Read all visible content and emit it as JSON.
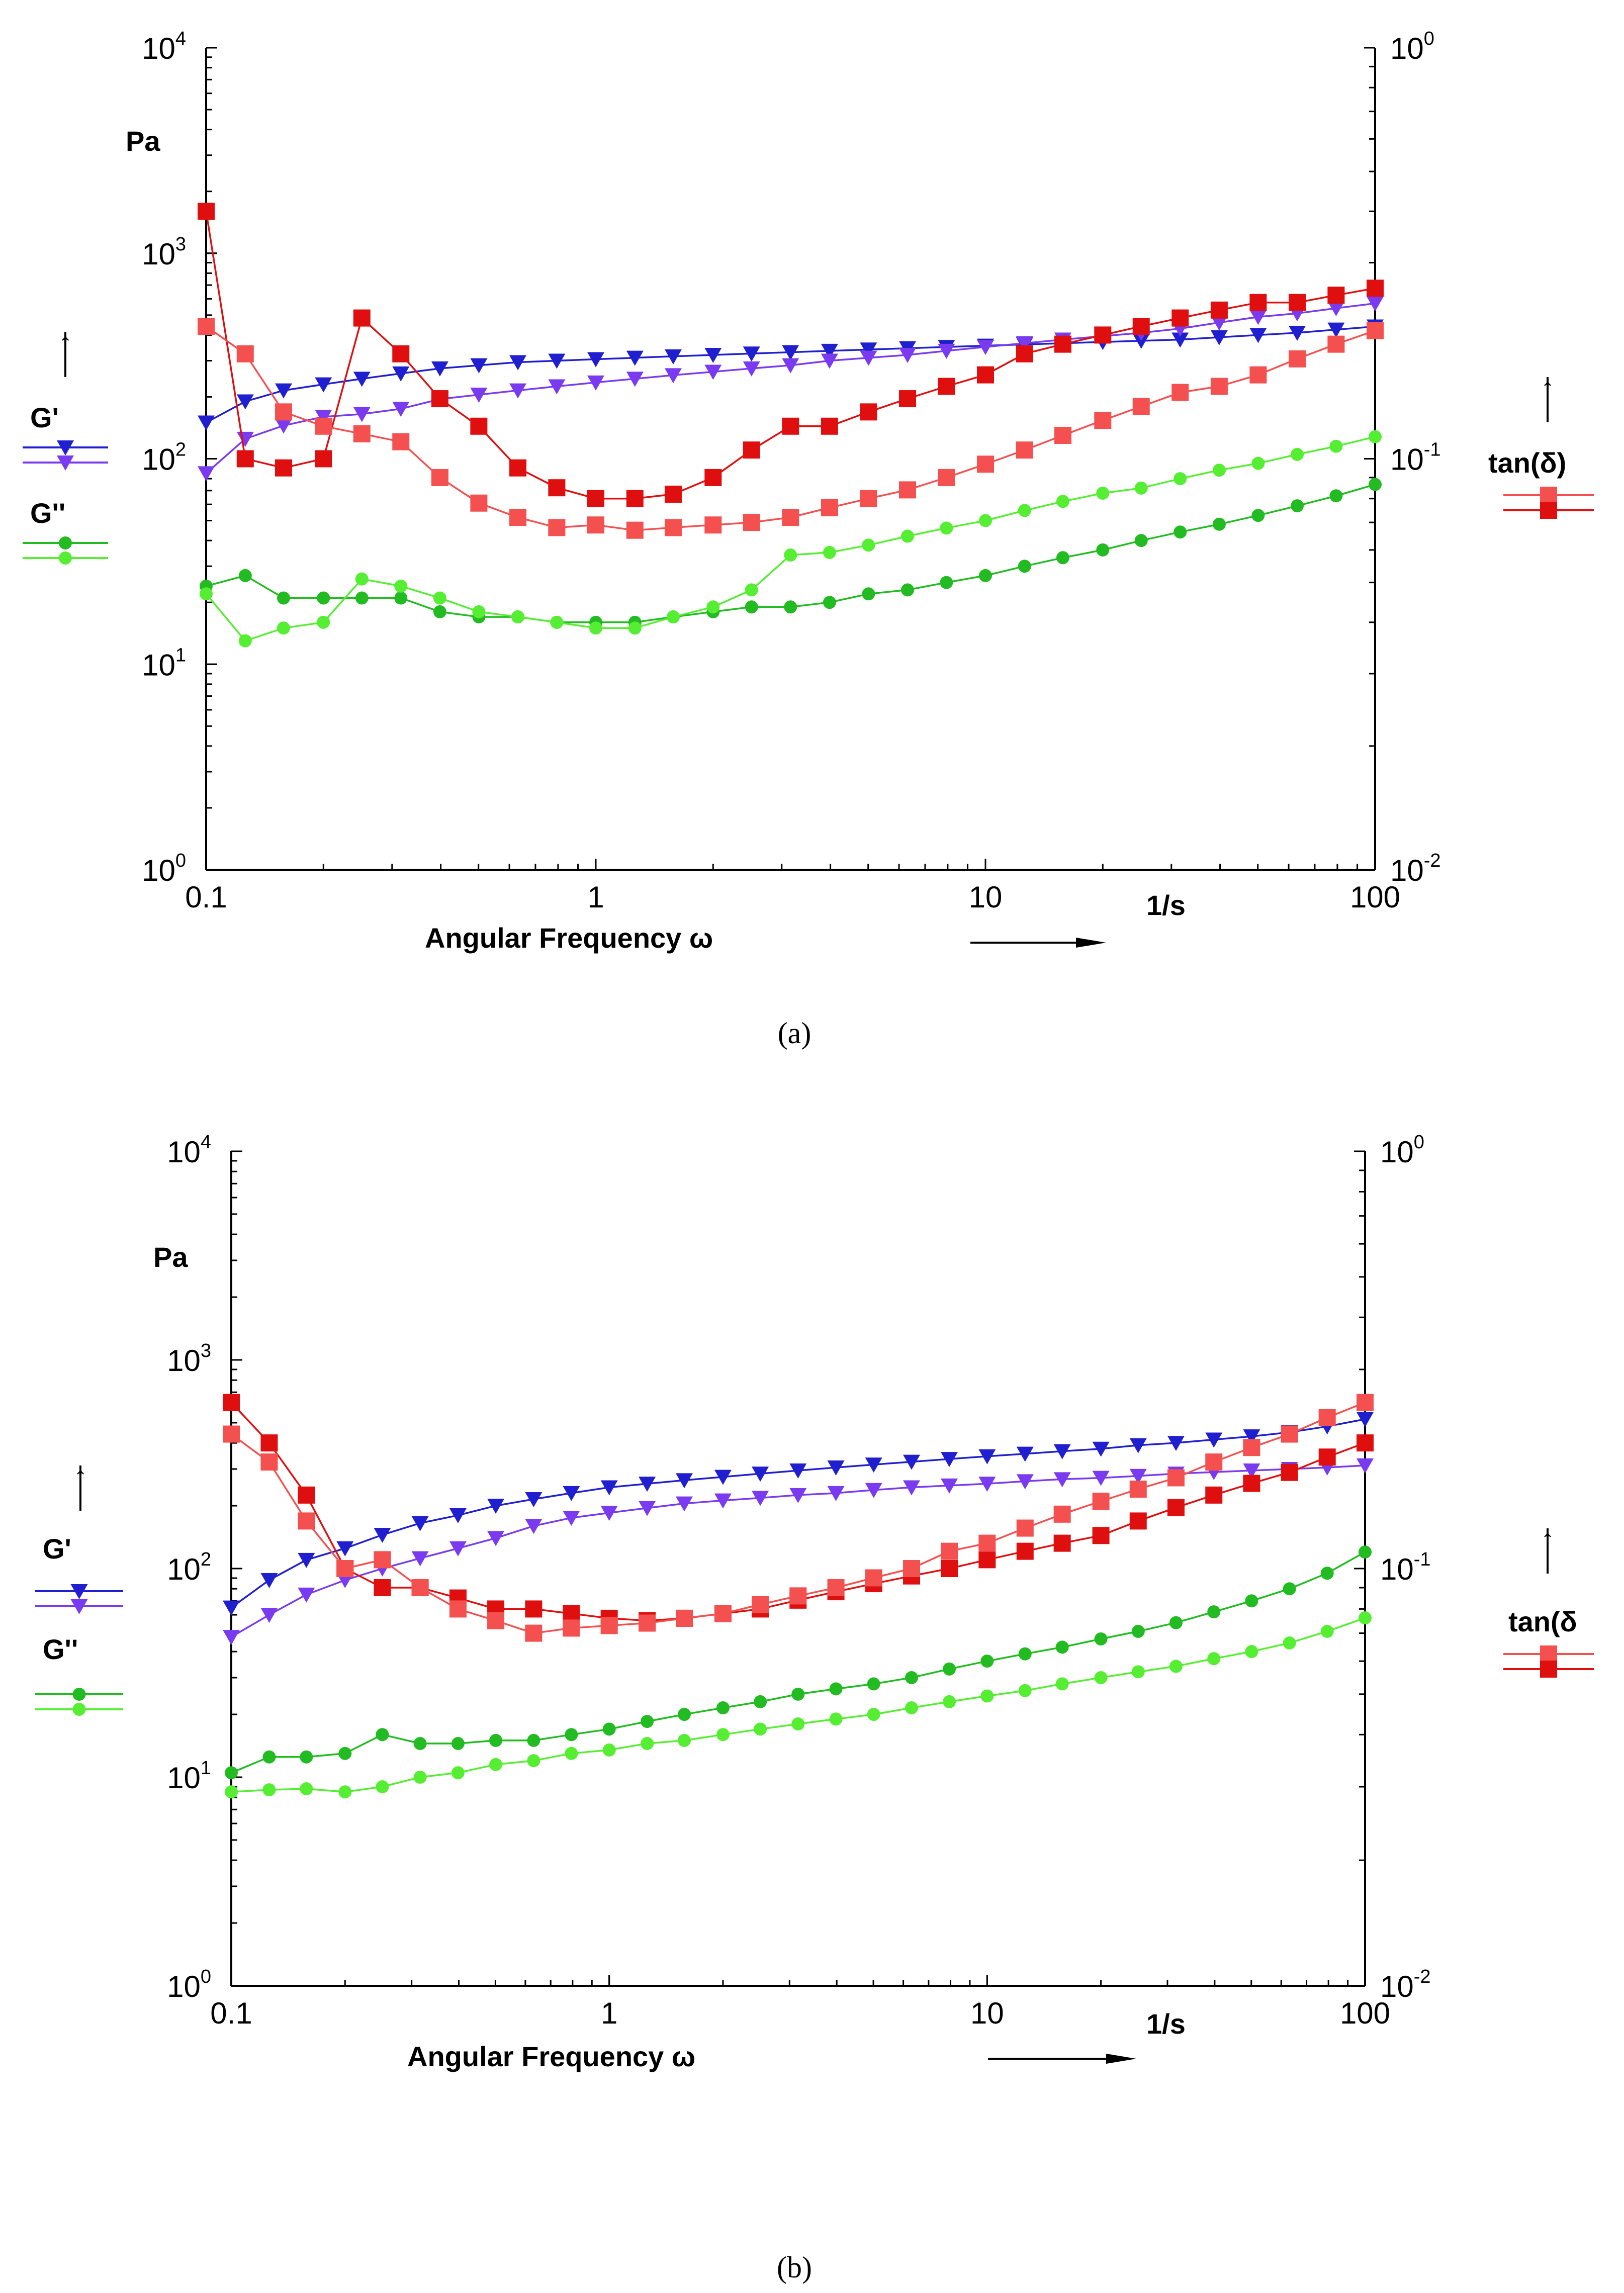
{
  "chart_data": [
    {
      "type": "line",
      "panel": "a",
      "caption": "(a)",
      "xlabel": "Angular Frequency ω",
      "x_unit_label": "1/s",
      "x_scale": "log",
      "xlim": [
        0.1,
        100
      ],
      "x_ticks": [
        {
          "v": 0.1,
          "t": "0.1"
        },
        {
          "v": 1,
          "t": "1"
        },
        {
          "v": 10,
          "t": "10"
        },
        {
          "v": 100,
          "t": "100"
        }
      ],
      "y_left": {
        "scale": "log",
        "lim": [
          1,
          10000
        ],
        "unit": "Pa",
        "ticks": [
          {
            "v": 1,
            "b": "10",
            "e": "0"
          },
          {
            "v": 10,
            "b": "10",
            "e": "1"
          },
          {
            "v": 100,
            "b": "10",
            "e": "2"
          },
          {
            "v": 1000,
            "b": "10",
            "e": "3"
          },
          {
            "v": 10000,
            "b": "10",
            "e": "4"
          }
        ]
      },
      "y_right": {
        "scale": "log",
        "lim": [
          0.01,
          1
        ],
        "ticks": [
          {
            "v": 0.01,
            "b": "10",
            "e": "-2"
          },
          {
            "v": 0.1,
            "b": "10",
            "e": "-1"
          },
          {
            "v": 1,
            "b": "10",
            "e": "0"
          }
        ]
      },
      "legend_left": {
        "gp_label": "G'",
        "gpp_label": "G''",
        "arrow": "↑"
      },
      "legend_right": {
        "label": "tan(δ)",
        "arrow": "↑"
      },
      "series": [
        {
          "name": "G' (1)",
          "axis": "left",
          "marker": "triangle",
          "color": "#1f1fd0",
          "x": [
            0.1,
            0.126,
            0.158,
            0.2,
            0.251,
            0.316,
            0.398,
            0.501,
            0.631,
            0.794,
            1,
            1.26,
            1.58,
            2,
            2.51,
            3.16,
            3.98,
            5.01,
            6.31,
            7.94,
            10,
            12.6,
            15.8,
            20,
            25.1,
            31.6,
            39.8,
            50.1,
            63.1,
            79.4,
            100
          ],
          "y": [
            150,
            190,
            215,
            230,
            245,
            260,
            275,
            285,
            295,
            300,
            305,
            310,
            315,
            320,
            325,
            330,
            335,
            340,
            345,
            350,
            355,
            360,
            365,
            370,
            375,
            380,
            390,
            400,
            410,
            425,
            440
          ]
        },
        {
          "name": "G' (2)",
          "axis": "left",
          "marker": "triangle",
          "color": "#7a3af0",
          "x": [
            0.1,
            0.126,
            0.158,
            0.2,
            0.251,
            0.316,
            0.398,
            0.501,
            0.631,
            0.794,
            1,
            1.26,
            1.58,
            2,
            2.51,
            3.16,
            3.98,
            5.01,
            6.31,
            7.94,
            10,
            12.6,
            15.8,
            20,
            25.1,
            31.6,
            39.8,
            50.1,
            63.1,
            79.4,
            100
          ],
          "y": [
            85,
            125,
            145,
            160,
            165,
            175,
            195,
            205,
            215,
            225,
            235,
            245,
            255,
            265,
            275,
            285,
            300,
            310,
            320,
            335,
            350,
            365,
            380,
            395,
            410,
            430,
            460,
            490,
            510,
            540,
            570
          ]
        },
        {
          "name": "G'' (1)",
          "axis": "left",
          "marker": "circle",
          "color": "#22bb22",
          "x": [
            0.1,
            0.126,
            0.158,
            0.2,
            0.251,
            0.316,
            0.398,
            0.501,
            0.631,
            0.794,
            1,
            1.26,
            1.58,
            2,
            2.51,
            3.16,
            3.98,
            5.01,
            6.31,
            7.94,
            10,
            12.6,
            15.8,
            20,
            25.1,
            31.6,
            39.8,
            50.1,
            63.1,
            79.4,
            100
          ],
          "y": [
            24,
            27,
            21,
            21,
            21,
            21,
            18,
            17,
            17,
            16,
            16,
            16,
            17,
            18,
            19,
            19,
            20,
            22,
            23,
            25,
            27,
            30,
            33,
            36,
            40,
            44,
            48,
            53,
            59,
            66,
            75
          ]
        },
        {
          "name": "G'' (2)",
          "axis": "left",
          "marker": "circle",
          "color": "#55ee33",
          "x": [
            0.1,
            0.126,
            0.158,
            0.2,
            0.251,
            0.316,
            0.398,
            0.501,
            0.631,
            0.794,
            1,
            1.26,
            1.58,
            2,
            2.51,
            3.16,
            3.98,
            5.01,
            6.31,
            7.94,
            10,
            12.6,
            15.8,
            20,
            25.1,
            31.6,
            39.8,
            50.1,
            63.1,
            79.4,
            100
          ],
          "y": [
            22,
            13,
            15,
            16,
            26,
            24,
            21,
            18,
            17,
            16,
            15,
            15,
            17,
            19,
            23,
            34,
            35,
            38,
            42,
            46,
            50,
            56,
            62,
            68,
            72,
            80,
            88,
            95,
            105,
            115,
            128
          ]
        },
        {
          "name": "tan(δ) (1)",
          "axis": "right",
          "marker": "square",
          "color": "#e00f0f",
          "x": [
            0.1,
            0.126,
            0.158,
            0.2,
            0.251,
            0.316,
            0.398,
            0.501,
            0.631,
            0.794,
            1,
            1.26,
            1.58,
            2,
            2.51,
            3.16,
            3.98,
            5.01,
            6.31,
            7.94,
            10,
            12.6,
            15.8,
            20,
            25.1,
            31.6,
            39.8,
            50.1,
            63.1,
            79.4,
            100
          ],
          "y": [
            0.4,
            0.1,
            0.095,
            0.1,
            0.22,
            0.18,
            0.14,
            0.12,
            0.095,
            0.085,
            0.08,
            0.08,
            0.082,
            0.09,
            0.105,
            0.12,
            0.12,
            0.13,
            0.14,
            0.15,
            0.16,
            0.18,
            0.19,
            0.2,
            0.21,
            0.22,
            0.23,
            0.24,
            0.24,
            0.25,
            0.26
          ]
        },
        {
          "name": "tan(δ) (2)",
          "axis": "right",
          "marker": "square",
          "color": "#f45050",
          "x": [
            0.1,
            0.126,
            0.158,
            0.2,
            0.251,
            0.316,
            0.398,
            0.501,
            0.631,
            0.794,
            1,
            1.26,
            1.58,
            2,
            2.51,
            3.16,
            3.98,
            5.01,
            6.31,
            7.94,
            10,
            12.6,
            15.8,
            20,
            25.1,
            31.6,
            39.8,
            50.1,
            63.1,
            79.4,
            100
          ],
          "y": [
            0.21,
            0.18,
            0.13,
            0.12,
            0.115,
            0.11,
            0.09,
            0.078,
            0.072,
            0.068,
            0.069,
            0.067,
            0.068,
            0.069,
            0.07,
            0.072,
            0.076,
            0.08,
            0.084,
            0.09,
            0.097,
            0.105,
            0.114,
            0.124,
            0.134,
            0.145,
            0.15,
            0.16,
            0.175,
            0.19,
            0.205
          ]
        }
      ]
    },
    {
      "type": "line",
      "panel": "b",
      "caption": "(b)",
      "xlabel": "Angular Frequency ω",
      "x_unit_label": "1/s",
      "x_scale": "log",
      "xlim": [
        0.1,
        100
      ],
      "x_ticks": [
        {
          "v": 0.1,
          "t": "0.1"
        },
        {
          "v": 1,
          "t": "1"
        },
        {
          "v": 10,
          "t": "10"
        },
        {
          "v": 100,
          "t": "100"
        }
      ],
      "y_left": {
        "scale": "log",
        "lim": [
          1,
          10000
        ],
        "unit": "Pa",
        "ticks": [
          {
            "v": 1,
            "b": "10",
            "e": "0"
          },
          {
            "v": 10,
            "b": "10",
            "e": "1"
          },
          {
            "v": 100,
            "b": "10",
            "e": "2"
          },
          {
            "v": 1000,
            "b": "10",
            "e": "3"
          },
          {
            "v": 10000,
            "b": "10",
            "e": "4"
          }
        ]
      },
      "y_right": {
        "scale": "log",
        "lim": [
          0.01,
          1
        ],
        "ticks": [
          {
            "v": 0.01,
            "b": "10",
            "e": "-2"
          },
          {
            "v": 0.1,
            "b": "10",
            "e": "-1"
          },
          {
            "v": 1,
            "b": "10",
            "e": "0"
          }
        ]
      },
      "legend_left": {
        "gp_label": "G'",
        "gpp_label": "G''",
        "arrow": "↑"
      },
      "legend_right": {
        "label": "tan(δ",
        "arrow": "↑"
      },
      "series": [
        {
          "name": "G' (1)",
          "axis": "left",
          "marker": "triangle",
          "color": "#1f1fd0",
          "x": [
            0.1,
            0.126,
            0.158,
            0.2,
            0.251,
            0.316,
            0.398,
            0.501,
            0.631,
            0.794,
            1,
            1.26,
            1.58,
            2,
            2.51,
            3.16,
            3.98,
            5.01,
            6.31,
            7.94,
            10,
            12.6,
            15.8,
            20,
            25.1,
            31.6,
            39.8,
            50.1,
            63.1,
            79.4,
            100
          ],
          "y": [
            65,
            88,
            110,
            125,
            145,
            165,
            180,
            200,
            215,
            230,
            245,
            255,
            265,
            275,
            285,
            295,
            305,
            315,
            325,
            335,
            345,
            355,
            365,
            375,
            390,
            400,
            415,
            430,
            450,
            480,
            520
          ]
        },
        {
          "name": "G' (2)",
          "axis": "left",
          "marker": "triangle",
          "color": "#7a3af0",
          "x": [
            0.1,
            0.126,
            0.158,
            0.2,
            0.251,
            0.316,
            0.398,
            0.501,
            0.631,
            0.794,
            1,
            1.26,
            1.58,
            2,
            2.51,
            3.16,
            3.98,
            5.01,
            6.31,
            7.94,
            10,
            12.6,
            15.8,
            20,
            25.1,
            31.6,
            39.8,
            50.1,
            63.1,
            79.4,
            100
          ],
          "y": [
            47,
            60,
            75,
            88,
            100,
            112,
            125,
            140,
            160,
            175,
            185,
            195,
            205,
            212,
            218,
            225,
            230,
            238,
            245,
            250,
            255,
            262,
            268,
            272,
            278,
            285,
            290,
            295,
            300,
            305,
            312
          ]
        },
        {
          "name": "G'' (1)",
          "axis": "left",
          "marker": "circle",
          "color": "#22bb22",
          "x": [
            0.1,
            0.126,
            0.158,
            0.2,
            0.251,
            0.316,
            0.398,
            0.501,
            0.631,
            0.794,
            1,
            1.26,
            1.58,
            2,
            2.51,
            3.16,
            3.98,
            5.01,
            6.31,
            7.94,
            10,
            12.6,
            15.8,
            20,
            25.1,
            31.6,
            39.8,
            50.1,
            63.1,
            79.4,
            100
          ],
          "y": [
            10.5,
            12.5,
            12.5,
            13,
            16,
            14.5,
            14.5,
            15,
            15,
            16,
            17,
            18.5,
            20,
            21.5,
            23,
            25,
            26.5,
            28,
            30,
            33,
            36,
            39,
            42,
            46,
            50,
            55,
            62,
            70,
            80,
            95,
            120
          ]
        },
        {
          "name": "G'' (2)",
          "axis": "left",
          "marker": "circle",
          "color": "#55ee33",
          "x": [
            0.1,
            0.126,
            0.158,
            0.2,
            0.251,
            0.316,
            0.398,
            0.501,
            0.631,
            0.794,
            1,
            1.26,
            1.58,
            2,
            2.51,
            3.16,
            3.98,
            5.01,
            6.31,
            7.94,
            10,
            12.6,
            15.8,
            20,
            25.1,
            31.6,
            39.8,
            50.1,
            63.1,
            79.4,
            100
          ],
          "y": [
            8.5,
            8.7,
            8.8,
            8.5,
            9,
            10,
            10.5,
            11.5,
            12,
            13,
            13.5,
            14.5,
            15,
            16,
            17,
            18,
            19,
            20,
            21.5,
            23,
            24.5,
            26,
            28,
            30,
            32,
            34,
            37,
            40,
            44,
            50,
            58
          ]
        },
        {
          "name": "tan(δ) (1)",
          "axis": "right",
          "marker": "square",
          "color": "#e00f0f",
          "x": [
            0.1,
            0.126,
            0.158,
            0.2,
            0.251,
            0.316,
            0.398,
            0.501,
            0.631,
            0.794,
            1,
            1.26,
            1.58,
            2,
            2.51,
            3.16,
            3.98,
            5.01,
            6.31,
            7.94,
            10,
            12.6,
            15.8,
            20,
            25.1,
            31.6,
            39.8,
            50.1,
            63.1,
            79.4,
            100
          ],
          "y": [
            0.25,
            0.2,
            0.15,
            0.1,
            0.09,
            0.09,
            0.085,
            0.08,
            0.08,
            0.078,
            0.076,
            0.075,
            0.076,
            0.078,
            0.08,
            0.084,
            0.088,
            0.092,
            0.096,
            0.1,
            0.105,
            0.11,
            0.115,
            0.12,
            0.13,
            0.14,
            0.15,
            0.16,
            0.17,
            0.185,
            0.2
          ]
        },
        {
          "name": "tan(δ) (2)",
          "axis": "right",
          "marker": "square",
          "color": "#f45050",
          "x": [
            0.1,
            0.126,
            0.158,
            0.2,
            0.251,
            0.316,
            0.398,
            0.501,
            0.631,
            0.794,
            1,
            1.26,
            1.58,
            2,
            2.51,
            3.16,
            3.98,
            5.01,
            6.31,
            7.94,
            10,
            12.6,
            15.8,
            20,
            25.1,
            31.6,
            39.8,
            50.1,
            63.1,
            79.4,
            100
          ],
          "y": [
            0.21,
            0.18,
            0.13,
            0.1,
            0.105,
            0.09,
            0.08,
            0.075,
            0.07,
            0.072,
            0.073,
            0.074,
            0.076,
            0.078,
            0.082,
            0.086,
            0.09,
            0.095,
            0.1,
            0.11,
            0.115,
            0.125,
            0.135,
            0.145,
            0.155,
            0.165,
            0.18,
            0.195,
            0.21,
            0.23,
            0.25
          ]
        }
      ]
    }
  ]
}
